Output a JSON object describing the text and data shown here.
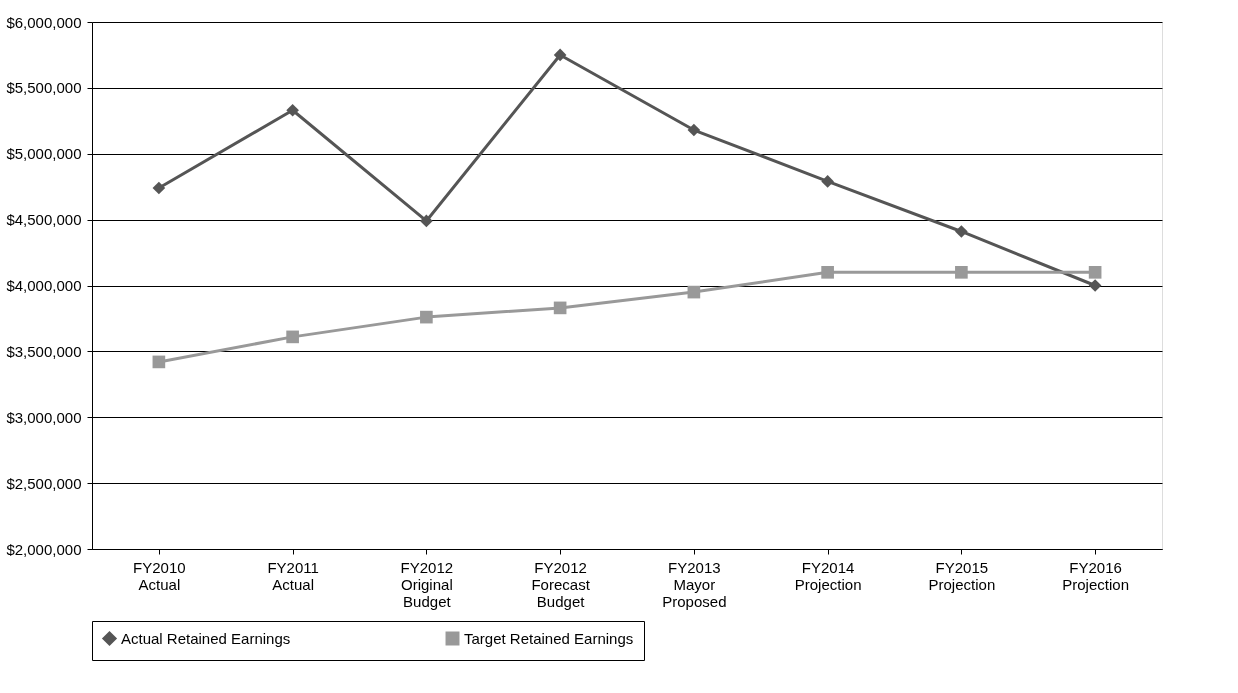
{
  "chart_data": {
    "type": "line",
    "categories": [
      "FY2010 Actual",
      "FY2011 Actual",
      "FY2012 Original Budget",
      "FY2012 Forecast Budget",
      "FY2013 Mayor Proposed",
      "FY2014 Projection",
      "FY2015 Projection",
      "FY2016 Projection"
    ],
    "series": [
      {
        "name": "Actual Retained Earnings",
        "color": "#555555",
        "marker": "diamond",
        "values": [
          4740000,
          5330000,
          4490000,
          5750000,
          5180000,
          4790000,
          4410000,
          4000000
        ]
      },
      {
        "name": "Target Retained Earnings",
        "color": "#999999",
        "marker": "square",
        "values": [
          3420000,
          3610000,
          3760000,
          3830000,
          3950000,
          4100000,
          4100000,
          4100000
        ]
      }
    ],
    "ylim": [
      2000000,
      6000000
    ],
    "yticks": [
      {
        "value": 2000000,
        "label": "$2,000,000"
      },
      {
        "value": 2500000,
        "label": "$2,500,000"
      },
      {
        "value": 3000000,
        "label": "$3,000,000"
      },
      {
        "value": 3500000,
        "label": "$3,500,000"
      },
      {
        "value": 4000000,
        "label": "$4,000,000"
      },
      {
        "value": 4500000,
        "label": "$4,500,000"
      },
      {
        "value": 5000000,
        "label": "$5,000,000"
      },
      {
        "value": 5500000,
        "label": "$5,500,000"
      },
      {
        "value": 6000000,
        "label": "$6,000,000"
      }
    ],
    "grid": "y",
    "legend": "bottom",
    "line_style": "solid"
  }
}
